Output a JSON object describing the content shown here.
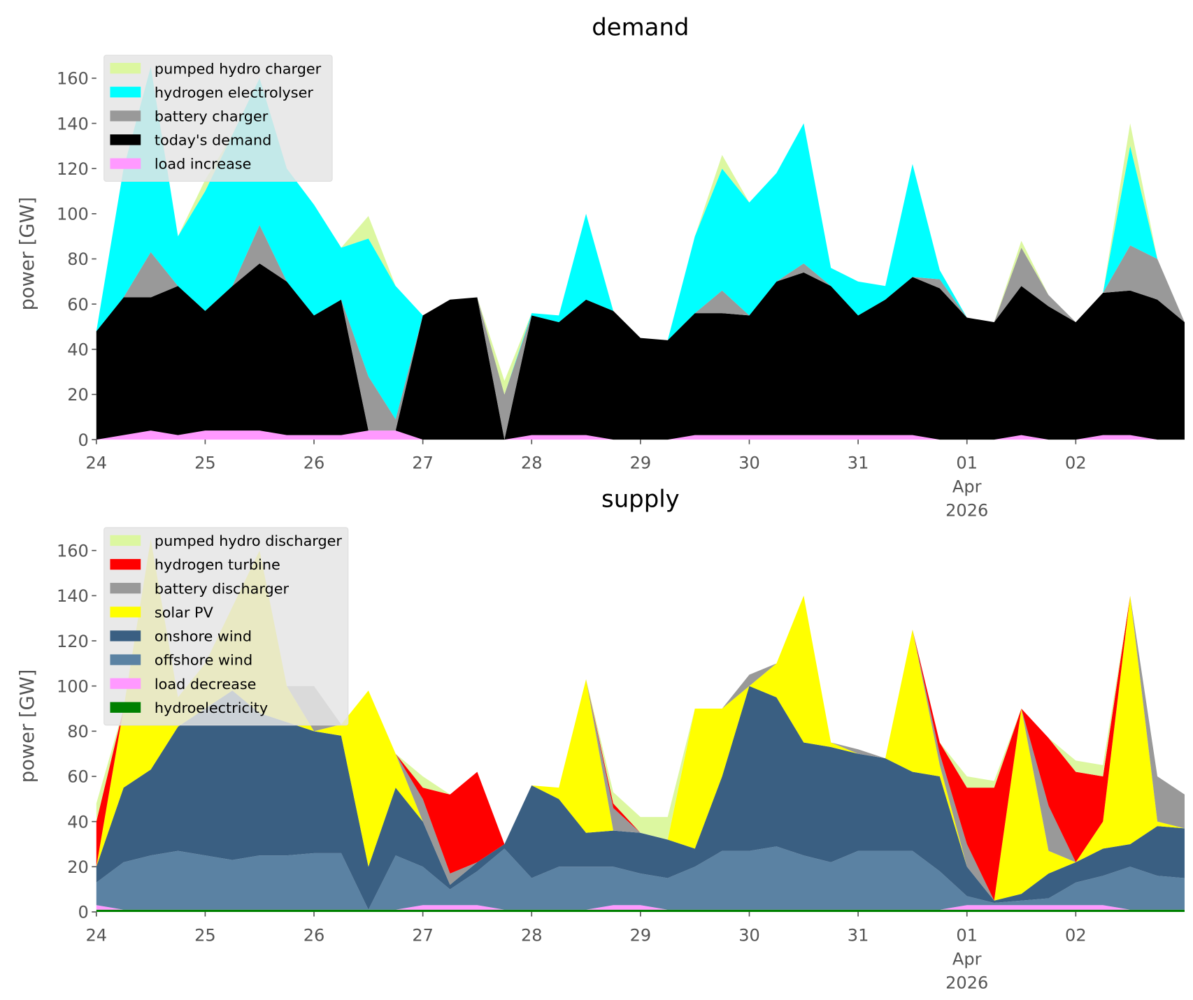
{
  "chart_data": [
    {
      "type": "area",
      "stacked": true,
      "title": "demand",
      "ylabel": "power [GW]",
      "legend": "upper left",
      "x": [
        0,
        6,
        12,
        18,
        24,
        30,
        36,
        42,
        48,
        54,
        60,
        66,
        72,
        78,
        84,
        90,
        96,
        102,
        108,
        114,
        120,
        126,
        132,
        138,
        144,
        150,
        156,
        162,
        168,
        174,
        180,
        186,
        192,
        198,
        204,
        210,
        216,
        222,
        228,
        234,
        240
      ],
      "xlim": [
        0,
        240
      ],
      "xticks": [
        {
          "value": 0,
          "label": "24"
        },
        {
          "value": 24,
          "label": "25"
        },
        {
          "value": 48,
          "label": "26"
        },
        {
          "value": 72,
          "label": "27"
        },
        {
          "value": 96,
          "label": "28"
        },
        {
          "value": 120,
          "label": "29"
        },
        {
          "value": 144,
          "label": "30"
        },
        {
          "value": 168,
          "label": "31"
        },
        {
          "value": 192,
          "label": "01\nApr\n2026"
        },
        {
          "value": 216,
          "label": "02"
        }
      ],
      "ylim": [
        0,
        170
      ],
      "yticks": [
        0,
        20,
        40,
        60,
        80,
        100,
        120,
        140,
        160
      ],
      "series": [
        {
          "name": "pumped hydro charger",
          "color": "#dcf7a0",
          "values": [
            0,
            0,
            0,
            0,
            5,
            0,
            0,
            0,
            0,
            0,
            10,
            0,
            0,
            0,
            0,
            6,
            0,
            0,
            0,
            0,
            0,
            0,
            0,
            6,
            0,
            0,
            0,
            0,
            0,
            0,
            0,
            0,
            0,
            0,
            3,
            0,
            0,
            0,
            10,
            0,
            0
          ]
        },
        {
          "name": "hydrogen electrolyser",
          "color": "#00ffff",
          "values": [
            0,
            57,
            82,
            22,
            53,
            67,
            65,
            50,
            49,
            23,
            61,
            59,
            0,
            0,
            0,
            0,
            1,
            3,
            38,
            0,
            0,
            0,
            34,
            54,
            50,
            48,
            62,
            8,
            15,
            6,
            50,
            4,
            0,
            0,
            0,
            0,
            0,
            0,
            44,
            0,
            0
          ]
        },
        {
          "name": "battery charger",
          "color": "#999999",
          "values": [
            0,
            0,
            20,
            0,
            0,
            0,
            17,
            0,
            0,
            0,
            24,
            5,
            0,
            0,
            0,
            20,
            0,
            0,
            0,
            0,
            0,
            0,
            0,
            10,
            0,
            0,
            4,
            0,
            0,
            0,
            0,
            4,
            0,
            0,
            17,
            5,
            0,
            0,
            20,
            18,
            0
          ]
        },
        {
          "name": "today's demand",
          "color": "#000000",
          "values": [
            48,
            61,
            59,
            66,
            53,
            64,
            74,
            68,
            53,
            60,
            0,
            0,
            55,
            62,
            63,
            0,
            53,
            50,
            60,
            57,
            45,
            44,
            54,
            54,
            53,
            68,
            72,
            66,
            53,
            60,
            70,
            67,
            54,
            52,
            66,
            59,
            52,
            63,
            64,
            62,
            52
          ]
        },
        {
          "name": "load increase",
          "color": "#ff99ff",
          "values": [
            0,
            2,
            4,
            2,
            4,
            4,
            4,
            2,
            2,
            2,
            4,
            4,
            0,
            0,
            0,
            0,
            2,
            2,
            2,
            0,
            0,
            0,
            2,
            2,
            2,
            2,
            2,
            2,
            2,
            2,
            2,
            0,
            0,
            0,
            2,
            0,
            0,
            2,
            2,
            0,
            0
          ]
        }
      ]
    },
    {
      "type": "area",
      "stacked": true,
      "title": "supply",
      "ylabel": "power [GW]",
      "legend": "upper left",
      "x": [
        0,
        6,
        12,
        18,
        24,
        30,
        36,
        42,
        48,
        54,
        60,
        66,
        72,
        78,
        84,
        90,
        96,
        102,
        108,
        114,
        120,
        126,
        132,
        138,
        144,
        150,
        156,
        162,
        168,
        174,
        180,
        186,
        192,
        198,
        204,
        210,
        216,
        222,
        228,
        234,
        240
      ],
      "xlim": [
        0,
        240
      ],
      "xticks": [
        {
          "value": 0,
          "label": "24"
        },
        {
          "value": 24,
          "label": "25"
        },
        {
          "value": 48,
          "label": "26"
        },
        {
          "value": 72,
          "label": "27"
        },
        {
          "value": 96,
          "label": "28"
        },
        {
          "value": 120,
          "label": "29"
        },
        {
          "value": 144,
          "label": "30"
        },
        {
          "value": 168,
          "label": "31"
        },
        {
          "value": 192,
          "label": "01\nApr\n2026"
        },
        {
          "value": 216,
          "label": "02"
        }
      ],
      "ylim": [
        0,
        170
      ],
      "yticks": [
        0,
        20,
        40,
        60,
        80,
        100,
        120,
        140,
        160
      ],
      "series": [
        {
          "name": "pumped hydro discharger",
          "color": "#dcf7a0",
          "values": [
            8,
            0,
            0,
            0,
            0,
            0,
            0,
            0,
            0,
            0,
            0,
            0,
            5,
            0,
            0,
            0,
            0,
            0,
            0,
            5,
            7,
            10,
            0,
            0,
            0,
            0,
            0,
            0,
            0,
            0,
            0,
            0,
            5,
            3,
            0,
            0,
            5,
            5,
            0,
            0,
            0
          ]
        },
        {
          "name": "hydrogen turbine",
          "color": "#ff0000",
          "values": [
            20,
            0,
            0,
            0,
            0,
            0,
            0,
            0,
            0,
            0,
            0,
            0,
            5,
            35,
            40,
            0,
            0,
            0,
            0,
            2,
            0,
            0,
            0,
            0,
            0,
            0,
            0,
            0,
            0,
            0,
            0,
            5,
            25,
            50,
            0,
            30,
            40,
            20,
            0,
            0,
            0
          ]
        },
        {
          "name": "battery discharger",
          "color": "#999999",
          "values": [
            0,
            0,
            0,
            0,
            0,
            0,
            0,
            0,
            20,
            0,
            0,
            0,
            10,
            5,
            0,
            0,
            0,
            0,
            0,
            10,
            0,
            0,
            0,
            0,
            5,
            0,
            0,
            0,
            2,
            0,
            0,
            5,
            10,
            0,
            0,
            20,
            0,
            0,
            0,
            20,
            15
          ]
        },
        {
          "name": "solar PV",
          "color": "#ffff00",
          "values": [
            0,
            35,
            102,
            13,
            20,
            37,
            72,
            16,
            0,
            5,
            78,
            15,
            0,
            0,
            0,
            0,
            0,
            5,
            68,
            0,
            0,
            0,
            62,
            30,
            0,
            15,
            65,
            2,
            0,
            0,
            63,
            5,
            0,
            0,
            82,
            10,
            0,
            12,
            110,
            2,
            0
          ]
        },
        {
          "name": "onshore wind",
          "color": "#3a5f82",
          "values": [
            7,
            33,
            38,
            55,
            65,
            75,
            63,
            59,
            54,
            52,
            19,
            30,
            20,
            2,
            4,
            2,
            41,
            30,
            15,
            16,
            18,
            17,
            8,
            33,
            73,
            66,
            50,
            51,
            43,
            41,
            35,
            42,
            13,
            1,
            3,
            11,
            9,
            12,
            10,
            22,
            22
          ]
        },
        {
          "name": "offshore wind",
          "color": "#5b82a3",
          "values": [
            10,
            21,
            24,
            26,
            24,
            22,
            24,
            24,
            25,
            25,
            0,
            24,
            17,
            7,
            15,
            27,
            14,
            19,
            19,
            17,
            14,
            14,
            19,
            26,
            26,
            28,
            24,
            21,
            26,
            26,
            26,
            17,
            4,
            1,
            2,
            3,
            10,
            13,
            19,
            15,
            14
          ]
        },
        {
          "name": "load decrease",
          "color": "#ff99ff",
          "values": [
            2,
            0,
            0,
            0,
            0,
            0,
            0,
            0,
            0,
            0,
            0,
            0,
            2,
            2,
            2,
            0,
            0,
            0,
            0,
            2,
            2,
            0,
            0,
            0,
            0,
            0,
            0,
            0,
            0,
            0,
            0,
            0,
            2,
            2,
            2,
            2,
            2,
            2,
            0,
            0,
            0
          ]
        },
        {
          "name": "hydroelectricity",
          "color": "#008000",
          "values": [
            1,
            1,
            1,
            1,
            1,
            1,
            1,
            1,
            1,
            1,
            1,
            1,
            1,
            1,
            1,
            1,
            1,
            1,
            1,
            1,
            1,
            1,
            1,
            1,
            1,
            1,
            1,
            1,
            1,
            1,
            1,
            1,
            1,
            1,
            1,
            1,
            1,
            1,
            1,
            1,
            1
          ]
        }
      ]
    }
  ]
}
